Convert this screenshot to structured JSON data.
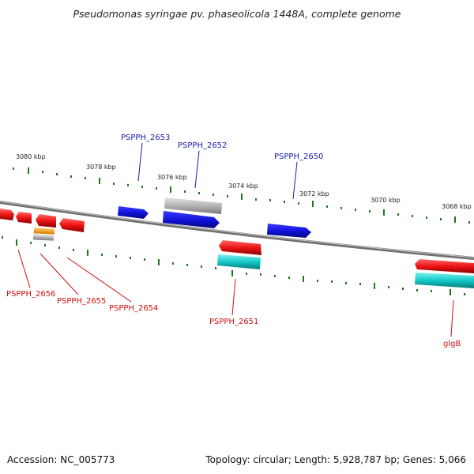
{
  "title": "Pseudomonas syringae pv. phaseolicola 1448A, complete genome",
  "footer": {
    "accession": "Accession: NC_005773",
    "topology": "Topology: circular; Length: 5,928,787 bp; Genes: 5,066"
  },
  "scale_labels": [
    "3080 kbp",
    "3078 kbp",
    "3076 kbp",
    "3074 kbp",
    "3072 kbp",
    "3070 kbp",
    "3068 kbp"
  ],
  "gene_labels": {
    "plus": [
      "PSPPH_2653",
      "PSPPH_2652",
      "PSPPH_2650"
    ],
    "minus": [
      "PSPPH_2656",
      "PSPPH_2655",
      "PSPPH_2654",
      "PSPPH_2651",
      "glgB"
    ]
  },
  "colors": {
    "plus_strand_gene": "#1414e6",
    "minus_strand_gene": "#e61414",
    "rna_gene": "#14c8c8",
    "pseudo_gene": "#b4b4b4",
    "other_gene": "#f5a623",
    "tick": "#1a7a1a",
    "backbone": "#808080"
  }
}
